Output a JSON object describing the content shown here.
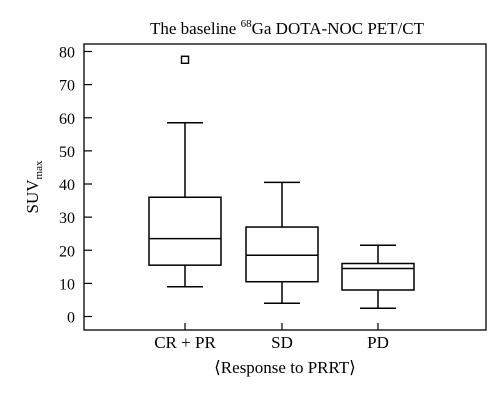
{
  "chart_data": {
    "type": "box",
    "title": {
      "prefix": "The baseline ",
      "superscript": "68",
      "suffix": "Ga DOTA-NOC PET/CT"
    },
    "xlabel": "⟨Response to PRRT⟩",
    "ylabel": {
      "main": "SUV",
      "subscript": "max"
    },
    "ylim": [
      0,
      80
    ],
    "yticks": [
      0,
      10,
      20,
      30,
      40,
      50,
      60,
      70,
      80
    ],
    "grid": false,
    "categories": [
      "CR + PR",
      "SD",
      "PD"
    ],
    "boxes": [
      {
        "category": "CR + PR",
        "whisker_low": 9,
        "q1": 15.5,
        "median": 23.5,
        "q3": 36,
        "whisker_high": 58.5,
        "outliers": [
          77.5
        ]
      },
      {
        "category": "SD",
        "whisker_low": 4,
        "q1": 10.5,
        "median": 18.5,
        "q3": 27,
        "whisker_high": 40.5,
        "outliers": []
      },
      {
        "category": "PD",
        "whisker_low": 2.5,
        "q1": 8,
        "median": 14.5,
        "q3": 16,
        "whisker_high": 21.5,
        "outliers": []
      }
    ]
  }
}
